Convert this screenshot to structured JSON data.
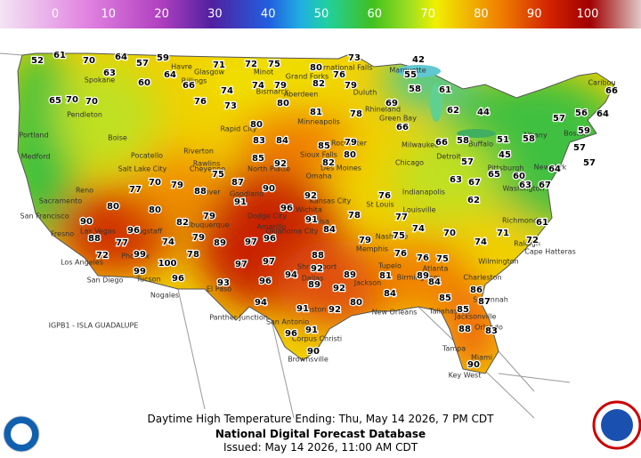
{
  "legend": {
    "ticks": [
      0,
      10,
      20,
      30,
      40,
      50,
      60,
      70,
      80,
      90,
      100
    ]
  },
  "temperatures": [
    61,
    64,
    57,
    59,
    70,
    52,
    63,
    60,
    64,
    66,
    71,
    72,
    75,
    73,
    80,
    76,
    42,
    55,
    58,
    61,
    62,
    44,
    65,
    70,
    70,
    76,
    73,
    74,
    79,
    74,
    82,
    79,
    80,
    81,
    78,
    69,
    66,
    66,
    58,
    57,
    51,
    58,
    57,
    56,
    64,
    66,
    59,
    57,
    57,
    64,
    67,
    61,
    60,
    63,
    65,
    45,
    67,
    62,
    63,
    71,
    72,
    74,
    70,
    74,
    75,
    77,
    76,
    78,
    79,
    84,
    91,
    92,
    96,
    90,
    91,
    92,
    87,
    85,
    83,
    84,
    80,
    85,
    82,
    80,
    79,
    75,
    79,
    88,
    82,
    79,
    80,
    70,
    77,
    80,
    90,
    88,
    96,
    74,
    79,
    89,
    97,
    96,
    97,
    97,
    96,
    94,
    88,
    92,
    89,
    91,
    94,
    93,
    100,
    99,
    99,
    72,
    77,
    96,
    78,
    92,
    89,
    92,
    80,
    84,
    81,
    76,
    89,
    84,
    85,
    76,
    75,
    86,
    85,
    87,
    88,
    83,
    90,
    90,
    96,
    91
  ],
  "cities": [
    "Havre",
    "Glasgow",
    "Minot",
    "International Falls",
    "Spokane",
    "Billings",
    "Bismarck",
    "Grand Forks",
    "Duluth",
    "Marquette",
    "Pendleton",
    "Boise",
    "Rapid City",
    "Aberdeen",
    "Minneapolis",
    "Green Bay",
    "Rhineland",
    "Caribou",
    "Portland",
    "Medford",
    "Pocatello",
    "Riverton",
    "Sioux Falls",
    "Rochester",
    "Milwaukee",
    "Detroit",
    "Buffalo",
    "Albany",
    "Boston",
    "New York",
    "Chicago",
    "Des Moines",
    "Omaha",
    "North Platte",
    "Cheyenne",
    "Rawlins",
    "Salt Lake City",
    "Reno",
    "Sacramento",
    "San Francisco",
    "Denver",
    "Goodland",
    "Kansas City",
    "St Louis",
    "Indianapolis",
    "Pittsburgh",
    "Washington",
    "Richmond",
    "Raleigh",
    "Cape Hatteras",
    "Wilmington",
    "Charleston",
    "Atlanta",
    "Nashville",
    "Louisville",
    "Memphis",
    "Tupelo",
    "Birmingham",
    "Savannah",
    "Jacksonville",
    "Tallahassee",
    "Tampa",
    "Miami",
    "Key West",
    "Orlando",
    "New Orleans",
    "Jackson",
    "Shreveport",
    "Dallas",
    "Houston",
    "San Antonio",
    "Corpus Christi",
    "Brownsville",
    "Panther Junction",
    "El Paso",
    "Albuquerque",
    "Amarillo",
    "Oklahoma City",
    "Tulsa",
    "Wichita",
    "Dodge City",
    "Flagstaff",
    "Phoenix",
    "Tucson",
    "Nogales",
    "Las Vegas",
    "Los Angeles",
    "San Diego",
    "Fresno"
  ],
  "labels": {
    "island": "IGPB1 - ISLA GUADALUPE"
  },
  "footer": {
    "line1": "Daytime High Temperature Ending: Thu, May 14 2026, 7 PM CDT",
    "line2": "National Digital Forecast Database",
    "line3": "Issued: May 14 2026, 11:00 AM CDT"
  }
}
